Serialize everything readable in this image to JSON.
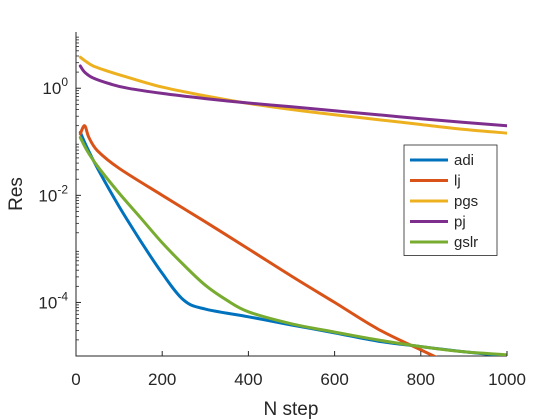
{
  "chart_data": {
    "type": "line",
    "title": "",
    "xlabel": "N step",
    "ylabel": "Res",
    "xlim": [
      0,
      1000
    ],
    "ylim_log10": [
      -5,
      1.05
    ],
    "y_scale": "log",
    "grid": false,
    "legend_position": "right",
    "x_ticks": [
      "0",
      "200",
      "400",
      "600",
      "800",
      "1000"
    ],
    "y_ticks": [
      {
        "base": "10",
        "exp": "-4",
        "log10": -4
      },
      {
        "base": "10",
        "exp": "-2",
        "log10": -2
      },
      {
        "base": "10",
        "exp": "0",
        "log10": 0
      }
    ],
    "series": [
      {
        "name": "adi",
        "color": "#0072BD",
        "points": [
          [
            10,
            0.15
          ],
          [
            25,
            0.08
          ],
          [
            50,
            0.032
          ],
          [
            100,
            0.0062
          ],
          [
            150,
            0.0014
          ],
          [
            200,
            0.00035
          ],
          [
            250,
            0.00011
          ],
          [
            300,
            7.5e-05
          ],
          [
            400,
            5.4e-05
          ],
          [
            500,
            3.8e-05
          ],
          [
            600,
            2.7e-05
          ],
          [
            700,
            1.9e-05
          ],
          [
            800,
            1.5e-05
          ],
          [
            900,
            1.2e-05
          ],
          [
            1000,
            1e-05
          ]
        ]
      },
      {
        "name": "lj",
        "color": "#D95319",
        "points": [
          [
            10,
            0.14
          ],
          [
            20,
            0.2
          ],
          [
            30,
            0.12
          ],
          [
            50,
            0.068
          ],
          [
            100,
            0.032
          ],
          [
            200,
            0.01
          ],
          [
            300,
            0.0032
          ],
          [
            400,
            0.001
          ],
          [
            500,
            0.00031
          ],
          [
            600,
            0.0001
          ],
          [
            700,
            3.2e-05
          ],
          [
            800,
            1.3e-05
          ],
          [
            860,
            7.7e-06
          ]
        ]
      },
      {
        "name": "pgs",
        "color": "#EDB120",
        "points": [
          [
            10,
            3.8
          ],
          [
            20,
            3.3
          ],
          [
            40,
            2.6
          ],
          [
            80,
            2.0
          ],
          [
            120,
            1.6
          ],
          [
            200,
            1.05
          ],
          [
            300,
            0.72
          ],
          [
            400,
            0.52
          ],
          [
            500,
            0.4
          ],
          [
            600,
            0.32
          ],
          [
            700,
            0.26
          ],
          [
            800,
            0.21
          ],
          [
            900,
            0.17
          ],
          [
            1000,
            0.145
          ]
        ]
      },
      {
        "name": "pj",
        "color": "#7E2F8E",
        "points": [
          [
            10,
            2.6
          ],
          [
            20,
            2.0
          ],
          [
            40,
            1.55
          ],
          [
            80,
            1.2
          ],
          [
            120,
            1.0
          ],
          [
            200,
            0.8
          ],
          [
            300,
            0.64
          ],
          [
            400,
            0.53
          ],
          [
            500,
            0.45
          ],
          [
            600,
            0.38
          ],
          [
            700,
            0.32
          ],
          [
            800,
            0.27
          ],
          [
            900,
            0.23
          ],
          [
            1000,
            0.2
          ]
        ]
      },
      {
        "name": "gslr",
        "color": "#77AC30",
        "points": [
          [
            10,
            0.12
          ],
          [
            25,
            0.07
          ],
          [
            50,
            0.035
          ],
          [
            100,
            0.011
          ],
          [
            150,
            0.0038
          ],
          [
            200,
            0.0013
          ],
          [
            250,
            0.0005
          ],
          [
            300,
            0.00021
          ],
          [
            350,
            0.00011
          ],
          [
            400,
            6.7e-05
          ],
          [
            500,
            4e-05
          ],
          [
            600,
            2.8e-05
          ],
          [
            700,
            2e-05
          ],
          [
            800,
            1.5e-05
          ],
          [
            900,
            1.2e-05
          ],
          [
            1000,
            1.05e-05
          ]
        ]
      }
    ]
  }
}
